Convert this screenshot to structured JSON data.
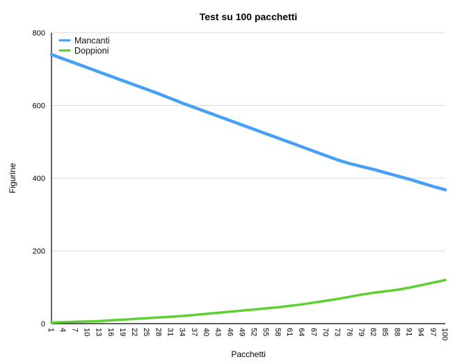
{
  "chart_data": {
    "type": "line",
    "title": "Test su 100 pacchetti",
    "xlabel": "Pacchetti",
    "ylabel": "Figurine",
    "x": [
      1,
      4,
      7,
      10,
      13,
      16,
      19,
      22,
      25,
      28,
      31,
      34,
      37,
      40,
      43,
      46,
      49,
      52,
      55,
      58,
      61,
      64,
      67,
      70,
      73,
      76,
      79,
      82,
      85,
      88,
      91,
      94,
      97,
      100
    ],
    "ylim": [
      0,
      800
    ],
    "yticks": [
      0,
      200,
      400,
      600,
      800
    ],
    "grid": true,
    "legend_position": "top-left",
    "series": [
      {
        "name": "Mancanti",
        "color": "#48a0f4",
        "values": [
          740,
          728,
          716,
          704,
          692,
          680,
          668,
          656,
          644,
          632,
          619,
          606,
          594,
          582,
          570,
          558,
          546,
          534,
          522,
          510,
          498,
          486,
          474,
          462,
          450,
          440,
          432,
          424,
          415,
          406,
          397,
          387,
          377,
          368
        ]
      },
      {
        "name": "Doppioni",
        "color": "#5fd032",
        "values": [
          3,
          4,
          5,
          6,
          7,
          9,
          11,
          13,
          15,
          17,
          19,
          21,
          24,
          27,
          30,
          33,
          36,
          39,
          42,
          45,
          49,
          53,
          58,
          63,
          68,
          74,
          80,
          85,
          89,
          93,
          99,
          106,
          113,
          120
        ]
      }
    ]
  },
  "colors": {
    "background": "#ffffff",
    "gridline": "#d9d9d9",
    "axis": "#000000",
    "text": "#000000"
  }
}
